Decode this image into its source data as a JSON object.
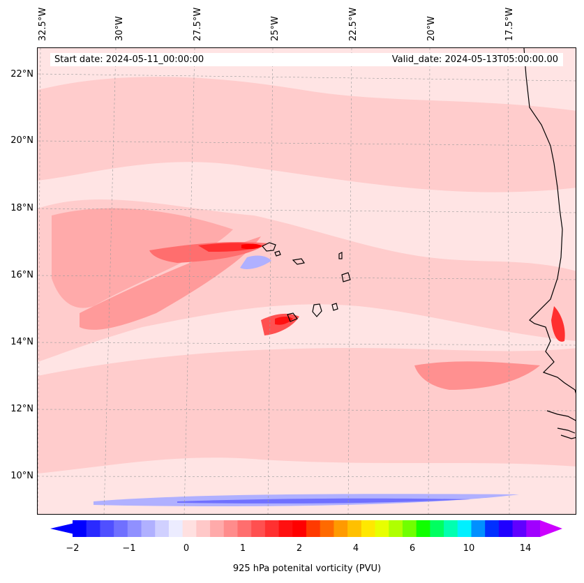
{
  "map": {
    "start_date": "Start date: 2024-05-11_00:00:00",
    "valid_date": "Valid_date: 2024-05-13T05:00:00.00",
    "lon_labels": [
      "32.5°W",
      "30°W",
      "27.5°W",
      "25°W",
      "22.5°W",
      "20°W",
      "17.5°W"
    ],
    "lat_labels": [
      "22°N",
      "20°N",
      "18°N",
      "16°N",
      "14°N",
      "12°N",
      "10°N"
    ],
    "gridlines": true,
    "coastline_color": "#000000"
  },
  "colorbar": {
    "label": "925 hPa potenital vorticity (PVU)",
    "ticks": [
      "−2",
      "−1",
      "0",
      "1",
      "2",
      "4",
      "6",
      "10",
      "14"
    ],
    "colors": [
      "#0000ff",
      "#2a2aff",
      "#5050ff",
      "#7070ff",
      "#9090ff",
      "#b0b0ff",
      "#d0d0ff",
      "#ececff",
      "#ffe0e0",
      "#ffc8c8",
      "#ffaaaa",
      "#ff8c8c",
      "#ff6e6e",
      "#ff5050",
      "#ff3030",
      "#ff1010",
      "#ff0000",
      "#ff3a00",
      "#ff6a00",
      "#ff9a00",
      "#ffc000",
      "#ffe800",
      "#e8ff00",
      "#b0ff00",
      "#70ff00",
      "#10ff00",
      "#00ff60",
      "#00ffb0",
      "#00f0ff",
      "#0090ff",
      "#0030ff",
      "#2000ff",
      "#6000ff",
      "#a000ff"
    ],
    "extend_low_color": "#0000ff",
    "extend_high_color": "#cc00ff"
  }
}
